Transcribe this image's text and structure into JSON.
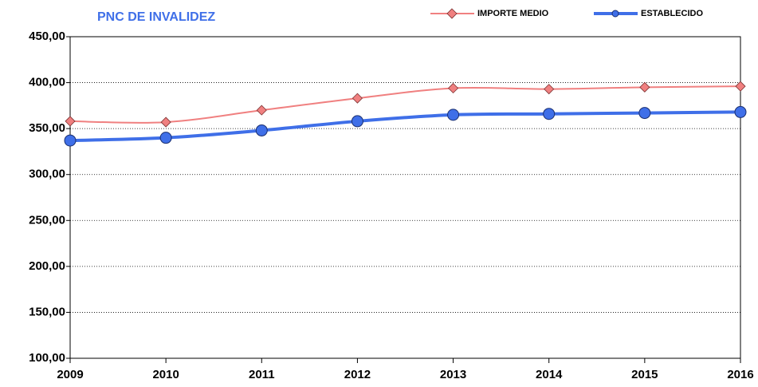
{
  "chart_data": {
    "type": "line",
    "title": "PNC DE INVALIDEZ",
    "categories": [
      "2009",
      "2010",
      "2011",
      "2012",
      "2013",
      "2014",
      "2015",
      "2016"
    ],
    "series": [
      {
        "name": "IMPORTE MEDIO",
        "color": "#f08080",
        "marker": "diamond",
        "values": [
          358,
          357,
          370,
          383,
          394,
          393,
          395,
          396
        ]
      },
      {
        "name": "ESTABLECIDO",
        "color": "#3f6fe8",
        "marker": "circle",
        "values": [
          337,
          340,
          348,
          358,
          365,
          366,
          367,
          368
        ]
      }
    ],
    "ylim": [
      100,
      450
    ],
    "yticks": [
      {
        "value": 100,
        "label": "100,00"
      },
      {
        "value": 150,
        "label": "150,00"
      },
      {
        "value": 200,
        "label": "200,00"
      },
      {
        "value": 250,
        "label": "250,00"
      },
      {
        "value": 300,
        "label": "300,00"
      },
      {
        "value": 350,
        "label": "350,00"
      },
      {
        "value": 400,
        "label": "400,00"
      },
      {
        "value": 450,
        "label": "450,00"
      }
    ],
    "grid": true
  }
}
